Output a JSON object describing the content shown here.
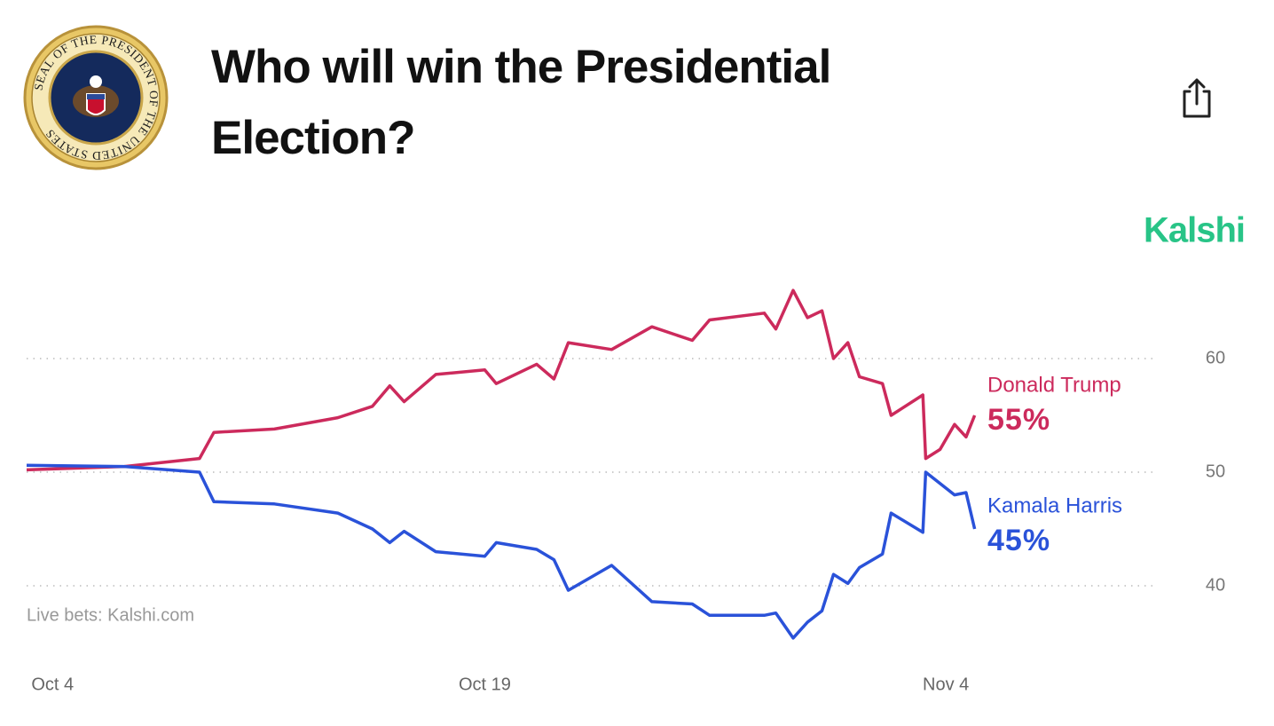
{
  "logo": {
    "text": "SEAL OF THE PRESIDENT OF THE UNITED STATES"
  },
  "brand": "Kalshi",
  "chart_data": {
    "type": "line",
    "title": "Who will win the Presidential Election?",
    "source": "Live bets: Kalshi.com",
    "x": [
      -0.9,
      2.5,
      5.1,
      5.6,
      7.7,
      9.9,
      11.1,
      11.7,
      12.2,
      13.3,
      15.0,
      15.4,
      16.8,
      17.4,
      17.9,
      19.4,
      20.8,
      22.2,
      22.8,
      24.7,
      25.1,
      25.7,
      26.2,
      26.7,
      27.1,
      27.6,
      28.0,
      28.8,
      29.1,
      30.2,
      30.3,
      30.8,
      31.3,
      31.7,
      32.0
    ],
    "xlim": [
      -0.9,
      38.2
    ],
    "xticks": [
      {
        "value": 0,
        "label": "Oct 4"
      },
      {
        "value": 15,
        "label": "Oct 19"
      },
      {
        "value": 31,
        "label": "Nov 4"
      }
    ],
    "ylim": [
      33.75,
      68.125
    ],
    "yticks": [
      40,
      50,
      60
    ],
    "grid": true,
    "series": [
      {
        "name": "Donald Trump",
        "color": "#cc2a5c",
        "values": [
          50.2,
          50.5,
          51.2,
          53.5,
          53.8,
          54.8,
          55.8,
          57.6,
          56.2,
          58.6,
          59.0,
          57.8,
          59.5,
          58.2,
          61.4,
          60.8,
          62.8,
          61.6,
          63.4,
          64.0,
          62.6,
          66.0,
          63.6,
          64.2,
          60.0,
          61.4,
          58.4,
          57.8,
          55.0,
          56.8,
          51.2,
          52.0,
          54.2,
          53.1,
          55
        ],
        "value_labels": [
          null,
          null,
          null,
          null,
          null,
          null,
          null,
          null,
          null,
          null,
          null,
          null,
          null,
          null,
          null,
          null,
          null,
          null,
          null,
          null,
          null,
          null,
          null,
          null,
          null,
          null,
          null,
          null,
          null,
          null,
          null,
          null,
          null,
          null,
          "55%"
        ]
      },
      {
        "name": "Kamala Harris",
        "color": "#2a52d9",
        "values": [
          50.6,
          50.5,
          50.0,
          47.4,
          47.2,
          46.4,
          45.0,
          43.8,
          44.8,
          43.0,
          42.6,
          43.8,
          43.2,
          42.3,
          39.6,
          41.8,
          38.6,
          38.4,
          37.4,
          37.4,
          37.6,
          35.4,
          36.8,
          37.8,
          41.0,
          40.2,
          41.6,
          42.8,
          46.4,
          44.7,
          50.0,
          49.0,
          48.0,
          48.2,
          45
        ],
        "value_labels": [
          null,
          null,
          null,
          null,
          null,
          null,
          null,
          null,
          null,
          null,
          null,
          null,
          null,
          null,
          null,
          null,
          null,
          null,
          null,
          null,
          null,
          null,
          null,
          null,
          null,
          null,
          null,
          null,
          null,
          null,
          null,
          null,
          null,
          null,
          "45%"
        ]
      }
    ]
  }
}
